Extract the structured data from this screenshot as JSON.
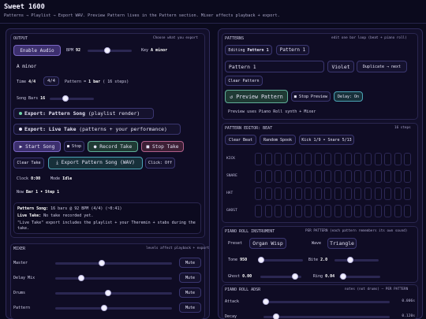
{
  "app": {
    "title": "Sweet 1600",
    "subtitle": "Patterns → Playlist → Export WAV. Preview Pattern lives in the Pattern section. Mixer affects playback + export."
  },
  "output": {
    "title": "OUTPUT",
    "hint": "Choose what you export",
    "enable_audio": "Enable Audio",
    "bpm_label": "BPM",
    "bpm_value": "92",
    "bpm_fraction": 0.45,
    "key_label": "Key",
    "key_value": "A minor",
    "key_field": "A minor",
    "time_label": "Time",
    "time_value": "4/4",
    "time_select": "4/4",
    "pattern_label": "Pattern =",
    "pattern_value": "1 bar",
    "pattern_steps": "( 16 steps)",
    "song_bars_label": "Song Bars",
    "song_bars_value": "16",
    "song_bars_fraction": 0.35,
    "export_song_label": "Export:",
    "export_song_value": "Pattern Song",
    "export_song_detail": "(playlist render)",
    "export_live_label": "Export:",
    "export_live_value": "Live Take",
    "export_live_detail": "(patterns + your performance)",
    "start_song": "▶ Start Song",
    "stop": "■ Stop",
    "record_take": "● Record Take",
    "stop_take": "■ Stop Take",
    "clear_take": "Clear Take",
    "export_pattern_song": "⤓ Export Pattern Song (WAV)",
    "click_toggle": "Click: Off",
    "clock_label": "Clock",
    "clock_value": "0:00",
    "mode_label": "Mode",
    "mode_value": "Idle",
    "now_label": "Now",
    "now_value": "Bar 1 • Step 1",
    "info_song_label": "Pattern Song:",
    "info_song_value": "16 bars @ 92 BPM (4/4) (~0:41)",
    "info_take_label": "Live Take:",
    "info_take_value": "No take recorded yet.",
    "info_note": "\"Live Take\" export includes the playlist + your Theremin + stabs during the take."
  },
  "mixer": {
    "title": "MIXER",
    "hint": "levels affect playback + export",
    "channels": [
      {
        "name": "Master",
        "level": 0.4,
        "mute": "Mute"
      },
      {
        "name": "Delay Mix",
        "level": 0.22,
        "mute": "Mute"
      },
      {
        "name": "Drums",
        "level": 0.45,
        "mute": "Mute"
      },
      {
        "name": "Pattern",
        "level": 0.42,
        "mute": "Mute"
      }
    ]
  },
  "patterns": {
    "title": "PATTERNS",
    "hint": "edit one bar loop (beat + piano roll)",
    "editing_label": "Editing",
    "editing_value": "Pattern 1",
    "pattern_select": "Pattern 1",
    "name_field": "Pattern 1",
    "color_select": "Violet",
    "duplicate": "Duplicate → next",
    "clear_pattern": "Clear Pattern",
    "preview_pattern": "↺ Preview Pattern",
    "stop_preview": "■ Stop Preview",
    "delay_toggle": "Delay: On",
    "preview_note": "Preview uses Piano Roll synth + Mixer"
  },
  "beat_editor": {
    "title": "PATTERN EDITOR: BEAT",
    "steps_label": "16 steps",
    "clear_beat": "Clear Beat",
    "random_spook": "Random Spook",
    "kick_snare_info": "Kick 1/9 • Snare 5/13",
    "rows": [
      "KICK",
      "SNARE",
      "HAT",
      "GHOST"
    ]
  },
  "piano_instrument": {
    "title": "PIANO ROLL INSTRUMENT",
    "hint": "PER PATTERN (each pattern remembers its own sound)",
    "preset_label": "Preset",
    "preset_value": "Organ Wisp",
    "wave_label": "Wave",
    "wave_value": "Triangle",
    "tone_label": "Tone",
    "tone_value": "950",
    "tone_fraction": 0.05,
    "bite_label": "Bite",
    "bite_value": "2.0",
    "bite_fraction": 0.35,
    "ghost_label": "Ghost",
    "ghost_value": "0.00",
    "ghost_fraction": 0.85,
    "ring_label": "Ring",
    "ring_value": "0.04",
    "ring_fraction": 0.1
  },
  "adsr": {
    "title": "PIANO ROLL ADSR",
    "hint": "notes (not drums) — PER PATTERN",
    "attack_label": "Attack",
    "attack_value": "0.006s",
    "attack_fraction": 0.02,
    "decay_label": "Decay",
    "decay_value": "0.120s",
    "decay_fraction": 0.1
  },
  "colors": {
    "accent": "#7a67c4",
    "green": "#5fae98",
    "red": "#b0608a"
  }
}
